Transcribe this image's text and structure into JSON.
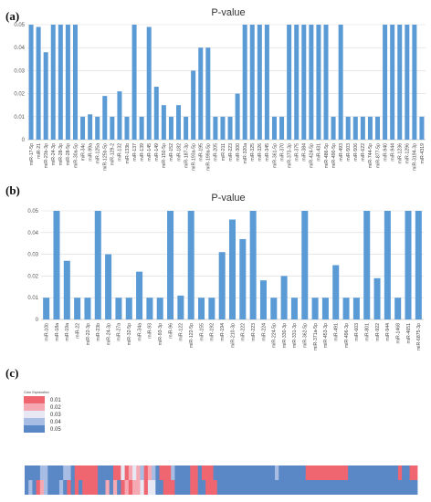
{
  "colors": {
    "bar": "#5b9bd5",
    "heat_low": "#ef6671",
    "heat_mid_low": "#f5a9b3",
    "heat_mid": "#e8e8f4",
    "heat_mid_high": "#a7bde3",
    "heat_high": "#5a87c6"
  },
  "chart_data": [
    {
      "type": "bar",
      "panel": "(a)",
      "title": "P-value",
      "ylim": [
        0,
        0.05
      ],
      "yticks": [
        "0",
        "0.01",
        "0.02",
        "0.03",
        "0.04",
        "0.05"
      ],
      "grid": true,
      "categories": [
        "miR-17-5p",
        "miR-21",
        "miR-23b-3p",
        "miR-24-3p",
        "miR-28-3p",
        "miR-28-5p",
        "miR-30a-5p",
        "miR-34c",
        "miR-99a",
        "miR-125a",
        "miR-125b-5p",
        "miR-129-2",
        "miR-132",
        "miR-133b",
        "miR-137",
        "miR-139",
        "miR-145",
        "miR-149",
        "miR-150-5p",
        "miR-152",
        "miR-182",
        "miR-187-3p",
        "miR-193a-5p",
        "miR-195",
        "miR-199a-5p",
        "miR-205",
        "miR-211",
        "miR-223",
        "miR-300",
        "miR-320a",
        "miR-325",
        "miR-326",
        "miR-345",
        "miR-361-5p",
        "miR-370",
        "miR-373-3p",
        "miR-375",
        "miR-384",
        "miR-424-5p",
        "miR-431",
        "miR-486-5p",
        "miR-490-5p",
        "miR-493",
        "miR-503",
        "miR-506",
        "miR-622",
        "miR-744-5p",
        "miR-877-5p",
        "miR-940",
        "miR-944",
        "miR-1236",
        "miR-1296",
        "miR-3194-3p",
        "miR-4319"
      ],
      "values": [
        0.05,
        0.049,
        0.038,
        0.05,
        0.05,
        0.05,
        0.05,
        0.01,
        0.011,
        0.01,
        0.019,
        0.01,
        0.021,
        0.01,
        0.05,
        0.01,
        0.049,
        0.023,
        0.015,
        0.01,
        0.015,
        0.01,
        0.03,
        0.04,
        0.04,
        0.01,
        0.01,
        0.01,
        0.02,
        0.05,
        0.05,
        0.05,
        0.05,
        0.01,
        0.01,
        0.05,
        0.05,
        0.05,
        0.05,
        0.05,
        0.05,
        0.01,
        0.05,
        0.01,
        0.01,
        0.01,
        0.01,
        0.01,
        0.05,
        0.05,
        0.05,
        0.05,
        0.05,
        0.01
      ]
    },
    {
      "type": "bar",
      "panel": "(b)",
      "title": "P-value",
      "ylim": [
        0,
        0.05
      ],
      "yticks": [
        "0",
        "0.01",
        "0.02",
        "0.03",
        "0.04",
        "0.05"
      ],
      "grid": true,
      "categories": [
        "miR-10b",
        "miR-18a",
        "miR-19a",
        "miR-22",
        "miR-22-3p",
        "miR-23b",
        "miR-24-3p",
        "miR-27a",
        "miR-32-5p",
        "miR-34a",
        "miR-93",
        "miR-93-3p",
        "miR-96",
        "miR-122",
        "miR-122-5p",
        "miR-155",
        "miR-192",
        "miR-194",
        "miR-210-3p",
        "miR-222",
        "miR-223",
        "miR-224",
        "miR-224-5p",
        "miR-330-3p",
        "miR-331-3p",
        "miR-362-5p",
        "miR-371a-5p",
        "miR-453-3p",
        "miR-491",
        "miR-496-3p",
        "miR-603",
        "miR-801",
        "miR-922",
        "miR-944",
        "miR-1468",
        "miR-4651",
        "miR-6875-3p"
      ],
      "values": [
        0.01,
        0.05,
        0.027,
        0.01,
        0.01,
        0.05,
        0.03,
        0.01,
        0.01,
        0.022,
        0.01,
        0.01,
        0.05,
        0.011,
        0.05,
        0.01,
        0.01,
        0.031,
        0.046,
        0.037,
        0.05,
        0.018,
        0.01,
        0.02,
        0.01,
        0.05,
        0.01,
        0.01,
        0.025,
        0.01,
        0.01,
        0.05,
        0.019,
        0.05,
        0.01,
        0.05,
        0.05
      ]
    },
    {
      "type": "heatmap",
      "panel": "(c)",
      "legend": {
        "title": "Color Explanation",
        "labels": [
          "0.01",
          "0.02",
          "0.03",
          "0.04",
          "0.05"
        ],
        "placement": "top-left"
      },
      "rows": [
        [
          0.05,
          0.05,
          0.05,
          0.05,
          0.04,
          0.04,
          0.05,
          0.05,
          0.05,
          0.05,
          0.04,
          0.04,
          0.05,
          0.01,
          0.01,
          0.01,
          0.01,
          0.01,
          0.01,
          0.05,
          0.05,
          0.05,
          0.05,
          0.01,
          0.01,
          0.03,
          0.01,
          0.02,
          0.03,
          0.02,
          0.04,
          0.01,
          0.02,
          0.04,
          0.05,
          0.01,
          0.01,
          0.01,
          0.04,
          0.05,
          0.05,
          0.05,
          0.05,
          0.01,
          0.01,
          0.05,
          0.01,
          0.01,
          0.01,
          0.05,
          0.05,
          0.05,
          0.05,
          0.05,
          0.05,
          0.05,
          0.05,
          0.05,
          0.05,
          0.05,
          0.05,
          0.05,
          0.05,
          0.05,
          0.05,
          0.04,
          0.05,
          0.05,
          0.05,
          0.05,
          0.05,
          0.05,
          0.05,
          0.01,
          0.01,
          0.01,
          0.01,
          0.01,
          0.01,
          0.01,
          0.01,
          0.01,
          0.01,
          0.01,
          0.05,
          0.05,
          0.05,
          0.05,
          0.05,
          0.05,
          0.05,
          0.05,
          0.05,
          0.05,
          0.05,
          0.05,
          0.05,
          0.01,
          0.05,
          0.05,
          0.01,
          0.01
        ],
        [
          0.05,
          0.04,
          0.05,
          0.01,
          0.02,
          0.04,
          0.05,
          0.05,
          0.05,
          0.04,
          0.05,
          0.01,
          0.05,
          0.01,
          0.05,
          0.01,
          0.01,
          0.01,
          0.01,
          0.05,
          0.05,
          0.02,
          0.05,
          0.02,
          0.05,
          0.01,
          0.02,
          0.01,
          0.02,
          0.02,
          0.03,
          0.01,
          0.03,
          0.03,
          0.05,
          0.05,
          0.01,
          0.01,
          0.01,
          0.05,
          0.05,
          0.05,
          0.05,
          0.01,
          0.01,
          0.05,
          0.05,
          0.01,
          0.01,
          0.01,
          0.05,
          0.05,
          0.05,
          0.05,
          0.05,
          0.05,
          0.05,
          0.05,
          0.05,
          0.05,
          0.05,
          0.05,
          0.05,
          0.05,
          0.05,
          0.05,
          0.05,
          0.05,
          0.05,
          0.05,
          0.05,
          0.05,
          0.05,
          0.05,
          0.05,
          0.05,
          0.05,
          0.05,
          0.05,
          0.05,
          0.05,
          0.05,
          0.05,
          0.05,
          0.05,
          0.05,
          0.05,
          0.05,
          0.05,
          0.05,
          0.05,
          0.05,
          0.05,
          0.05,
          0.05,
          0.05,
          0.05,
          0.05,
          0.05,
          0.05,
          0.05,
          0.05
        ]
      ]
    }
  ]
}
